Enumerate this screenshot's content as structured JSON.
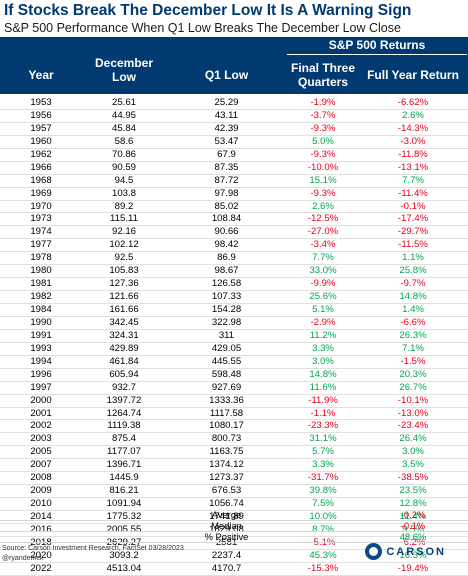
{
  "title": "If Stocks Break The December Low It Is A Warning Sign",
  "subtitle": "S&P 500 Performance When Q1 Low Breaks The December Low Close",
  "header": {
    "group": "S&P 500 Returns",
    "year": "Year",
    "dec_low": "December Low",
    "q1_low": "Q1 Low",
    "final_three": "Final Three Quarters",
    "full_year": "Full Year Return"
  },
  "rows": [
    {
      "year": "1953",
      "dec": "25.61",
      "q1": "25.29",
      "fq": "-1.9%",
      "fy": "-6.62%"
    },
    {
      "year": "1956",
      "dec": "44.95",
      "q1": "43.11",
      "fq": "-3.7%",
      "fy": "2.6%"
    },
    {
      "year": "1957",
      "dec": "45.84",
      "q1": "42.39",
      "fq": "-9.3%",
      "fy": "-14.3%"
    },
    {
      "year": "1960",
      "dec": "58.6",
      "q1": "53.47",
      "fq": "5.0%",
      "fy": "-3.0%"
    },
    {
      "year": "1962",
      "dec": "70.86",
      "q1": "67.9",
      "fq": "-9.3%",
      "fy": "-11.8%"
    },
    {
      "year": "1966",
      "dec": "90.59",
      "q1": "87.35",
      "fq": "-10.0%",
      "fy": "-13.1%"
    },
    {
      "year": "1968",
      "dec": "94.5",
      "q1": "87.72",
      "fq": "15.1%",
      "fy": "7.7%"
    },
    {
      "year": "1969",
      "dec": "103.8",
      "q1": "97.98",
      "fq": "-9.3%",
      "fy": "-11.4%"
    },
    {
      "year": "1970",
      "dec": "89.2",
      "q1": "85.02",
      "fq": "2.6%",
      "fy": "-0.1%"
    },
    {
      "year": "1973",
      "dec": "115.11",
      "q1": "108.84",
      "fq": "-12.5%",
      "fy": "-17.4%"
    },
    {
      "year": "1974",
      "dec": "92.16",
      "q1": "90.66",
      "fq": "-27.0%",
      "fy": "-29.7%"
    },
    {
      "year": "1977",
      "dec": "102.12",
      "q1": "98.42",
      "fq": "-3.4%",
      "fy": "-11.5%"
    },
    {
      "year": "1978",
      "dec": "92.5",
      "q1": "86.9",
      "fq": "7.7%",
      "fy": "1.1%"
    },
    {
      "year": "1980",
      "dec": "105.83",
      "q1": "98.67",
      "fq": "33.0%",
      "fy": "25.8%"
    },
    {
      "year": "1981",
      "dec": "127.36",
      "q1": "126.58",
      "fq": "-9.9%",
      "fy": "-9.7%"
    },
    {
      "year": "1982",
      "dec": "121.66",
      "q1": "107.33",
      "fq": "25.6%",
      "fy": "14.8%"
    },
    {
      "year": "1984",
      "dec": "161.66",
      "q1": "154.28",
      "fq": "5.1%",
      "fy": "1.4%"
    },
    {
      "year": "1990",
      "dec": "342.45",
      "q1": "322.98",
      "fq": "-2.9%",
      "fy": "-6.6%"
    },
    {
      "year": "1991",
      "dec": "324.31",
      "q1": "311",
      "fq": "11.2%",
      "fy": "26.3%"
    },
    {
      "year": "1993",
      "dec": "429.89",
      "q1": "429.05",
      "fq": "3.3%",
      "fy": "7.1%"
    },
    {
      "year": "1994",
      "dec": "461.84",
      "q1": "445.55",
      "fq": "3.0%",
      "fy": "-1.5%"
    },
    {
      "year": "1996",
      "dec": "605.94",
      "q1": "598.48",
      "fq": "14.8%",
      "fy": "20.3%"
    },
    {
      "year": "1997",
      "dec": "932.7",
      "q1": "927.69",
      "fq": "11.6%",
      "fy": "26.7%"
    },
    {
      "year": "2000",
      "dec": "1397.72",
      "q1": "1333.36",
      "fq": "-11.9%",
      "fy": "-10.1%"
    },
    {
      "year": "2001",
      "dec": "1264.74",
      "q1": "1117.58",
      "fq": "-1.1%",
      "fy": "-13.0%"
    },
    {
      "year": "2002",
      "dec": "1119.38",
      "q1": "1080.17",
      "fq": "-23.3%",
      "fy": "-23.4%"
    },
    {
      "year": "2003",
      "dec": "875.4",
      "q1": "800.73",
      "fq": "31.1%",
      "fy": "26.4%"
    },
    {
      "year": "2005",
      "dec": "1177.07",
      "q1": "1163.75",
      "fq": "5.7%",
      "fy": "3.0%"
    },
    {
      "year": "2007",
      "dec": "1396.71",
      "q1": "1374.12",
      "fq": "3.3%",
      "fy": "3.5%"
    },
    {
      "year": "2008",
      "dec": "1445.9",
      "q1": "1273.37",
      "fq": "-31.7%",
      "fy": "-38.5%"
    },
    {
      "year": "2009",
      "dec": "816.21",
      "q1": "676.53",
      "fq": "39.8%",
      "fy": "23.5%"
    },
    {
      "year": "2010",
      "dec": "1091.94",
      "q1": "1056.74",
      "fq": "7.5%",
      "fy": "12.8%"
    },
    {
      "year": "2014",
      "dec": "1775.32",
      "q1": "1741.89",
      "fq": "10.0%",
      "fy": "11.4%"
    },
    {
      "year": "2016",
      "dec": "2005.55",
      "q1": "1829.08",
      "fq": "8.7%",
      "fy": "9.5%"
    },
    {
      "year": "2018",
      "dec": "2629.27",
      "q1": "2581",
      "fq": "-5.1%",
      "fy": "-6.2%"
    },
    {
      "year": "2020",
      "dec": "3093.2",
      "q1": "2237.4",
      "fq": "45.3%",
      "fy": "16.3%"
    },
    {
      "year": "2022",
      "dec": "4513.04",
      "q1": "4170.7",
      "fq": "-15.3%",
      "fy": "-19.4%"
    }
  ],
  "summary": [
    {
      "label": "Averge",
      "value": "-0.2%"
    },
    {
      "label": "Median",
      "value": "-0.1%"
    },
    {
      "label": "% Positive",
      "value": "48.6%"
    }
  ],
  "source": "Source: Carson Investment Research, FactSet 03/28/2023",
  "handle": "@ryandetrick",
  "logo_text": "CARSON",
  "colors": {
    "header_bg": "#003a70",
    "negative": "#e8001c",
    "positive": "#00a651"
  }
}
